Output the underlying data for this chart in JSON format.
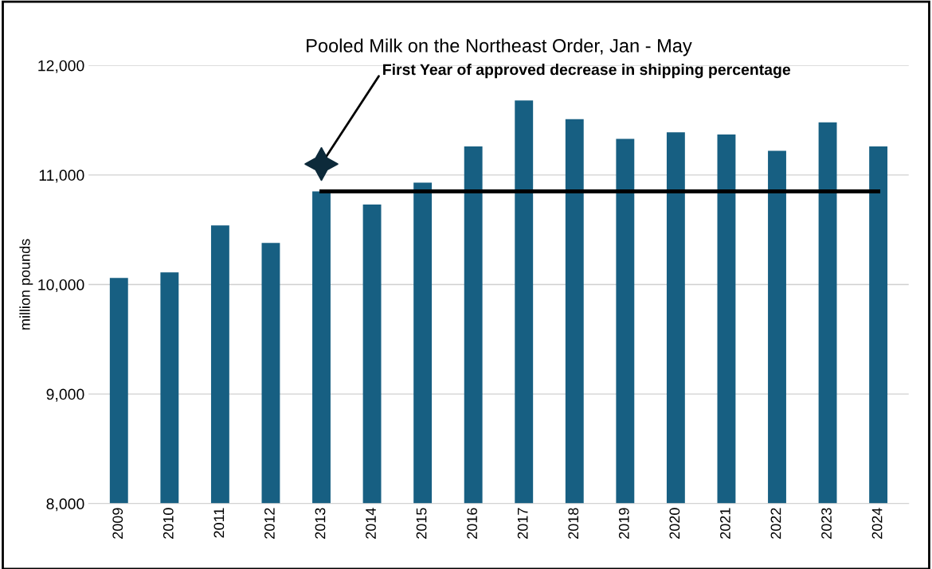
{
  "chart_data": {
    "type": "bar",
    "title": "Pooled Milk on the Northeast Order, Jan - May",
    "ylabel": "million pounds",
    "categories": [
      "2009",
      "2010",
      "2011",
      "2012",
      "2013",
      "2014",
      "2015",
      "2016",
      "2017",
      "2018",
      "2019",
      "2020",
      "2021",
      "2022",
      "2023",
      "2024"
    ],
    "series": [
      {
        "color": "#175f82",
        "values": [
          10060,
          10110,
          10540,
          10380,
          10850,
          10730,
          10930,
          11260,
          11680,
          11510,
          11330,
          11390,
          11370,
          11220,
          11480,
          11260
        ]
      },
      {
        "type": "line",
        "color": "#000000",
        "values": [
          null,
          null,
          null,
          null,
          10850,
          10850,
          10850,
          10850,
          10850,
          10850,
          10850,
          10850,
          10850,
          10850,
          10850,
          10850
        ]
      }
    ],
    "annotations": [
      {
        "text": "First Year of approved decrease in shipping percentage",
        "x": "2013",
        "y": 11100
      }
    ],
    "ylim": [
      8000,
      12000
    ],
    "yticks": [
      {
        "value": 8000,
        "label": "8,000"
      },
      {
        "value": 9000,
        "label": "9,000"
      },
      {
        "value": 10000,
        "label": "10,000"
      },
      {
        "value": 11000,
        "label": "11,000"
      },
      {
        "value": 12000,
        "label": "12,000"
      }
    ],
    "grid": "y"
  }
}
